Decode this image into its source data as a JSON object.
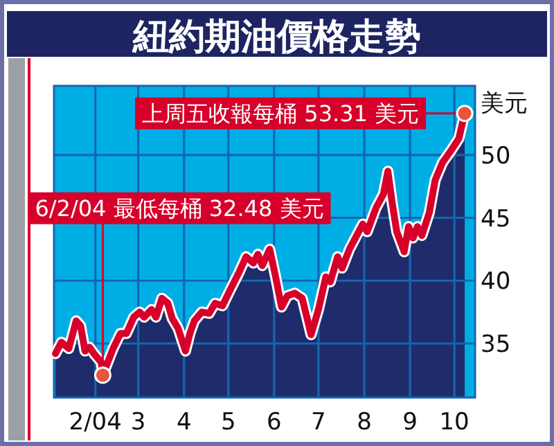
{
  "chart_data": {
    "type": "area",
    "title": "紐約期油價格走勢",
    "ylabel": "美元",
    "x": [
      "2004-01-05",
      "2004-01-09",
      "2004-01-14",
      "2004-01-19",
      "2004-01-22",
      "2004-01-25",
      "2004-01-28",
      "2004-01-31",
      "2004-02-05",
      "2004-02-06",
      "2004-02-13",
      "2004-02-18",
      "2004-02-22",
      "2004-02-27",
      "2004-03-02",
      "2004-03-05",
      "2004-03-10",
      "2004-03-13",
      "2004-03-17",
      "2004-03-21",
      "2004-03-24",
      "2004-03-28",
      "2004-04-02",
      "2004-04-05",
      "2004-04-08",
      "2004-04-13",
      "2004-04-18",
      "2004-04-22",
      "2004-04-27",
      "2004-05-02",
      "2004-05-08",
      "2004-05-13",
      "2004-05-18",
      "2004-05-21",
      "2004-05-24",
      "2004-05-29",
      "2004-06-02",
      "2004-06-06",
      "2004-06-10",
      "2004-06-15",
      "2004-06-20",
      "2004-06-26",
      "2004-07-01",
      "2004-07-06",
      "2004-07-09",
      "2004-07-14",
      "2004-07-17",
      "2004-07-22",
      "2004-07-26",
      "2004-07-31",
      "2004-08-03",
      "2004-08-09",
      "2004-08-14",
      "2004-08-17",
      "2004-08-20",
      "2004-08-23",
      "2004-08-28",
      "2004-08-31",
      "2004-09-03",
      "2004-09-06",
      "2004-09-09",
      "2004-09-14",
      "2004-09-18",
      "2004-09-23",
      "2004-09-29",
      "2004-10-04",
      "2004-10-08"
    ],
    "series": [
      {
        "color": "#1f2c6b",
        "values": [
          34.2,
          35.1,
          34.6,
          36.8,
          36.4,
          34.4,
          34.7,
          34.2,
          33.5,
          32.48,
          34.6,
          35.8,
          35.8,
          37.1,
          37.5,
          37.1,
          37.7,
          37.1,
          38.6,
          38.2,
          37.0,
          36.2,
          34.4,
          35.8,
          36.8,
          37.5,
          37.4,
          38.2,
          38.0,
          39.2,
          40.6,
          41.9,
          41.4,
          42.1,
          41.2,
          42.5,
          40.3,
          37.9,
          38.8,
          39.0,
          38.6,
          35.7,
          37.7,
          40.3,
          39.9,
          41.9,
          41.0,
          42.5,
          43.4,
          44.5,
          43.9,
          45.8,
          46.9,
          48.7,
          46.1,
          43.9,
          42.3,
          44.3,
          43.4,
          44.3,
          43.6,
          45.4,
          48.0,
          49.4,
          50.4,
          51.3,
          53.31
        ]
      },
      {
        "type": "line",
        "color": "#d6002a",
        "values": [
          34.2,
          35.1,
          34.6,
          36.8,
          36.4,
          34.4,
          34.7,
          34.2,
          33.5,
          32.48,
          34.6,
          35.8,
          35.8,
          37.1,
          37.5,
          37.1,
          37.7,
          37.1,
          38.6,
          38.2,
          37.0,
          36.2,
          34.4,
          35.8,
          36.8,
          37.5,
          37.4,
          38.2,
          38.0,
          39.2,
          40.6,
          41.9,
          41.4,
          42.1,
          41.2,
          42.5,
          40.3,
          37.9,
          38.8,
          39.0,
          38.6,
          35.7,
          37.7,
          40.3,
          39.9,
          41.9,
          41.0,
          42.5,
          43.4,
          44.5,
          43.9,
          45.8,
          46.9,
          48.7,
          46.1,
          43.9,
          42.3,
          44.3,
          43.4,
          44.3,
          43.6,
          45.4,
          48.0,
          49.4,
          50.4,
          51.3,
          53.31
        ]
      }
    ],
    "xlim": [
      "2004-01-04",
      "2004-10-15"
    ],
    "xticks": [
      {
        "value": "2004-02-01",
        "label": "2/04"
      },
      {
        "value": "2004-03-01",
        "label": "3"
      },
      {
        "value": "2004-04-01",
        "label": "4"
      },
      {
        "value": "2004-05-01",
        "label": "5"
      },
      {
        "value": "2004-06-01",
        "label": "6"
      },
      {
        "value": "2004-07-01",
        "label": "7"
      },
      {
        "value": "2004-08-01",
        "label": "8"
      },
      {
        "value": "2004-09-01",
        "label": "9"
      },
      {
        "value": "2004-10-01",
        "label": "10"
      }
    ],
    "ylim": [
      30.7,
      55.5
    ],
    "yticks": [
      35,
      40,
      45,
      50
    ],
    "grid": true,
    "annotations": [
      {
        "text": "上周五收報每桶 53.31 美元",
        "x": "2004-10-08",
        "y": 53.31
      },
      {
        "text": "6/2/04 最低每桶 32.48 美元",
        "x": "2004-02-06",
        "y": 32.48
      }
    ]
  }
}
